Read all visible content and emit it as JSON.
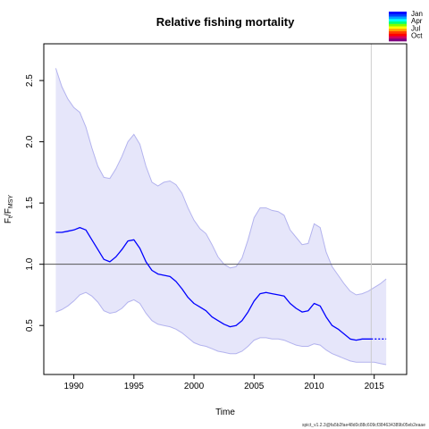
{
  "chart_data": {
    "type": "line",
    "title": "Relative fishing mortality",
    "xlabel": "Time",
    "ylabel_main": "F",
    "ylabel_sub1": "t",
    "ylabel_mid": "/F",
    "ylabel_sub2": "MSY",
    "xlim": [
      1987.5,
      2017.7
    ],
    "ylim": [
      0.1,
      2.8
    ],
    "xticks": [
      "1990",
      "1995",
      "2000",
      "2005",
      "2010",
      "2015"
    ],
    "yticks": [
      "0.5",
      "1.0",
      "1.5",
      "2.0",
      "2.5"
    ],
    "reference_line": 1.0,
    "last_observation": 2014.75,
    "series": [
      {
        "role": "estimate",
        "color": "#0000ff",
        "x": [
          1988.5,
          1989,
          1989.5,
          1990,
          1990.5,
          1991,
          1991.5,
          1992,
          1992.5,
          1993,
          1993.5,
          1994,
          1994.5,
          1995,
          1995.5,
          1996,
          1996.5,
          1997,
          1997.5,
          1998,
          1998.5,
          1999,
          1999.5,
          2000,
          2000.5,
          2001,
          2001.5,
          2002,
          2002.5,
          2003,
          2003.5,
          2004,
          2004.5,
          2005,
          2005.5,
          2006,
          2006.5,
          2007,
          2007.5,
          2008,
          2008.5,
          2009,
          2009.5,
          2010,
          2010.5,
          2011,
          2011.5,
          2012,
          2012.5,
          2013,
          2013.5,
          2014,
          2014.5,
          2014.75
        ],
        "y": [
          1.26,
          1.26,
          1.27,
          1.28,
          1.3,
          1.28,
          1.2,
          1.12,
          1.04,
          1.02,
          1.06,
          1.12,
          1.19,
          1.2,
          1.13,
          1.02,
          0.95,
          0.92,
          0.91,
          0.9,
          0.86,
          0.8,
          0.73,
          0.68,
          0.65,
          0.62,
          0.57,
          0.54,
          0.51,
          0.49,
          0.5,
          0.54,
          0.61,
          0.7,
          0.76,
          0.77,
          0.76,
          0.75,
          0.74,
          0.68,
          0.64,
          0.61,
          0.62,
          0.68,
          0.66,
          0.57,
          0.5,
          0.47,
          0.43,
          0.39,
          0.38,
          0.39,
          0.39,
          0.39
        ]
      },
      {
        "role": "forecast",
        "color": "#0000ff",
        "style": "dashed",
        "x": [
          2014.75,
          2015,
          2015.5,
          2016
        ],
        "y": [
          0.39,
          0.39,
          0.39,
          0.39
        ]
      },
      {
        "role": "confidence_interval",
        "color": "#e6e6fa",
        "x": [
          1988.5,
          1989,
          1989.5,
          1990,
          1990.5,
          1991,
          1991.5,
          1992,
          1992.5,
          1993,
          1993.5,
          1994,
          1994.5,
          1995,
          1995.5,
          1996,
          1996.5,
          1997,
          1997.5,
          1998,
          1998.5,
          1999,
          1999.5,
          2000,
          2000.5,
          2001,
          2001.5,
          2002,
          2002.5,
          2003,
          2003.5,
          2004,
          2004.5,
          2005,
          2005.5,
          2006,
          2006.5,
          2007,
          2007.5,
          2008,
          2008.5,
          2009,
          2009.5,
          2010,
          2010.5,
          2011,
          2011.5,
          2012,
          2012.5,
          2013,
          2013.5,
          2014,
          2014.5,
          2015,
          2015.5,
          2016
        ],
        "upper": [
          2.6,
          2.45,
          2.35,
          2.28,
          2.24,
          2.12,
          1.95,
          1.8,
          1.71,
          1.7,
          1.78,
          1.88,
          2.0,
          2.06,
          1.98,
          1.8,
          1.67,
          1.64,
          1.67,
          1.68,
          1.65,
          1.58,
          1.46,
          1.36,
          1.29,
          1.25,
          1.16,
          1.06,
          1.0,
          0.97,
          0.98,
          1.05,
          1.2,
          1.38,
          1.46,
          1.46,
          1.44,
          1.43,
          1.4,
          1.28,
          1.22,
          1.16,
          1.17,
          1.33,
          1.3,
          1.1,
          0.98,
          0.91,
          0.84,
          0.78,
          0.75,
          0.76,
          0.78,
          0.81,
          0.84,
          0.88
        ],
        "lower": [
          0.61,
          0.63,
          0.66,
          0.7,
          0.75,
          0.77,
          0.74,
          0.69,
          0.62,
          0.6,
          0.61,
          0.64,
          0.69,
          0.71,
          0.68,
          0.6,
          0.54,
          0.51,
          0.5,
          0.49,
          0.47,
          0.44,
          0.4,
          0.36,
          0.34,
          0.33,
          0.31,
          0.29,
          0.28,
          0.27,
          0.27,
          0.29,
          0.33,
          0.38,
          0.4,
          0.4,
          0.39,
          0.39,
          0.38,
          0.36,
          0.34,
          0.33,
          0.33,
          0.35,
          0.34,
          0.3,
          0.27,
          0.25,
          0.23,
          0.21,
          0.2,
          0.2,
          0.2,
          0.2,
          0.19,
          0.18
        ]
      }
    ],
    "legend": {
      "position": "top-right",
      "labels": [
        "Jan",
        "Apr",
        "Jul",
        "Oct"
      ],
      "colors": [
        "#0000ff",
        "#0040ff",
        "#00a0ff",
        "#00ffff",
        "#00ff80",
        "#80ff00",
        "#ffff00",
        "#ffa000",
        "#ff4000",
        "#ff0000",
        "#d00060",
        "#800080"
      ]
    },
    "footer": "spict_v1.2.3@fa5b2fae48d0c88c609cf384634389b05eb2eaae",
    "grid": false
  }
}
